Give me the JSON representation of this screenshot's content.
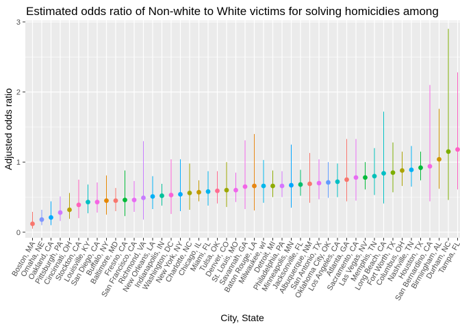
{
  "chart_data": {
    "type": "scatter",
    "title": "Estimated odds ratio of Non-white to White victims for solving homicidies among",
    "xlabel": "City, State",
    "ylabel": "Adjusted odds ratio",
    "ylim": [
      -0.08,
      3.02
    ],
    "yticks": [
      0,
      1,
      2,
      3
    ],
    "grid": true,
    "legend": "none",
    "error_bars": true,
    "points": [
      {
        "city": "Boston, MA",
        "or": 0.12,
        "low": 0.05,
        "high": 0.29,
        "color": "#F8766D"
      },
      {
        "city": "Omaha, NE",
        "or": 0.18,
        "low": 0.1,
        "high": 0.32,
        "color": "#7F96FF"
      },
      {
        "city": "Oakland, CA",
        "or": 0.21,
        "low": 0.1,
        "high": 0.44,
        "color": "#00A9FF"
      },
      {
        "city": "Pittsburgh, PA",
        "or": 0.28,
        "low": 0.16,
        "high": 0.51,
        "color": "#CF78FF"
      },
      {
        "city": "Cincinnati, OH",
        "or": 0.32,
        "low": 0.19,
        "high": 0.56,
        "color": "#B79F00"
      },
      {
        "city": "Stockton, CA",
        "or": 0.39,
        "low": 0.2,
        "high": 0.75,
        "color": "#FF62BC"
      },
      {
        "city": "Louisville, KY",
        "or": 0.43,
        "low": 0.27,
        "high": 0.68,
        "color": "#00BFC4"
      },
      {
        "city": "San Diego, CA",
        "or": 0.43,
        "low": 0.28,
        "high": 0.71,
        "color": "#F564E3"
      },
      {
        "city": "Buffalo, NY",
        "or": 0.45,
        "low": 0.25,
        "high": 0.81,
        "color": "#E58700"
      },
      {
        "city": "Baltimore, MD",
        "or": 0.45,
        "low": 0.3,
        "high": 0.63,
        "color": "#F8766D"
      },
      {
        "city": "Fresno, CA",
        "or": 0.46,
        "low": 0.23,
        "high": 0.88,
        "color": "#00BA38"
      },
      {
        "city": "San Francisco, CA",
        "or": 0.46,
        "low": 0.29,
        "high": 0.73,
        "color": "#E76BF3"
      },
      {
        "city": "Richmond, VA",
        "or": 0.49,
        "low": 0.18,
        "high": 1.3,
        "color": "#C77CFF"
      },
      {
        "city": "New Orleans, LA",
        "or": 0.51,
        "low": 0.33,
        "high": 0.8,
        "color": "#00B0F6"
      },
      {
        "city": "Indianapolis, IN",
        "or": 0.52,
        "low": 0.38,
        "high": 0.69,
        "color": "#00C19A"
      },
      {
        "city": "Washington, DC",
        "or": 0.53,
        "low": 0.26,
        "high": 1.04,
        "color": "#FB61D7"
      },
      {
        "city": "New York, NY",
        "or": 0.54,
        "low": 0.3,
        "high": 1.04,
        "color": "#00ABFD"
      },
      {
        "city": "Charlotte, NC",
        "or": 0.56,
        "low": 0.32,
        "high": 0.98,
        "color": "#A3A500"
      },
      {
        "city": "Chicago, IL",
        "or": 0.57,
        "low": 0.44,
        "high": 0.74,
        "color": "#C49A00"
      },
      {
        "city": "Miami, FL",
        "or": 0.58,
        "low": 0.38,
        "high": 0.87,
        "color": "#00B4EF"
      },
      {
        "city": "Tulsa, OK",
        "or": 0.59,
        "low": 0.41,
        "high": 0.87,
        "color": "#FF6C91"
      },
      {
        "city": "Denver, CO",
        "or": 0.6,
        "low": 0.36,
        "high": 1.0,
        "color": "#9CA700"
      },
      {
        "city": "St. Louis, MO",
        "or": 0.6,
        "low": 0.43,
        "high": 0.85,
        "color": "#EF67EB"
      },
      {
        "city": "Savannah, GA",
        "or": 0.65,
        "low": 0.33,
        "high": 1.31,
        "color": "#F265E7"
      },
      {
        "city": "Baton Rouge, LA",
        "or": 0.66,
        "low": 0.31,
        "high": 1.4,
        "color": "#E68613"
      },
      {
        "city": "Milwaukee, wI",
        "or": 0.66,
        "low": 0.42,
        "high": 1.03,
        "color": "#00B6EB"
      },
      {
        "city": "Detroit, MI",
        "or": 0.66,
        "low": 0.5,
        "high": 0.88,
        "color": "#8EAB00"
      },
      {
        "city": "Philadelphia, PA",
        "or": 0.66,
        "low": 0.5,
        "high": 0.87,
        "color": "#D575FE"
      },
      {
        "city": "Minneapolis, MN",
        "or": 0.67,
        "low": 0.35,
        "high": 1.25,
        "color": "#00A5FF"
      },
      {
        "city": "Jacksonville, FL",
        "or": 0.68,
        "low": 0.52,
        "high": 0.89,
        "color": "#00BE6C"
      },
      {
        "city": "Albuquerque, NM",
        "or": 0.69,
        "low": 0.42,
        "high": 1.13,
        "color": "#F8766D"
      },
      {
        "city": "San Antonio, TX",
        "or": 0.7,
        "low": 0.47,
        "high": 1.04,
        "color": "#E76BF3"
      },
      {
        "city": "Oklahoma City, OK",
        "or": 0.71,
        "low": 0.49,
        "high": 1.0,
        "color": "#619CFF"
      },
      {
        "city": "Los Angeles, CA",
        "or": 0.72,
        "low": 0.5,
        "high": 0.98,
        "color": "#00BFC4"
      },
      {
        "city": "Atlanta, GA",
        "or": 0.75,
        "low": 0.44,
        "high": 1.33,
        "color": "#F8766D"
      },
      {
        "city": "Sacramento, CA",
        "or": 0.78,
        "low": 0.45,
        "high": 1.33,
        "color": "#E76BF3"
      },
      {
        "city": "Las Vegas, NV",
        "or": 0.78,
        "low": 0.61,
        "high": 1.0,
        "color": "#00BA38"
      },
      {
        "city": "Memphis, TN",
        "or": 0.8,
        "low": 0.53,
        "high": 1.2,
        "color": "#00C0B8"
      },
      {
        "city": "Long Beach, CA",
        "or": 0.84,
        "low": 0.41,
        "high": 1.72,
        "color": "#00BFC4"
      },
      {
        "city": "Fort Worth, TX",
        "or": 0.85,
        "low": 0.57,
        "high": 1.28,
        "color": "#7CAE00"
      },
      {
        "city": "Columbus, OH",
        "or": 0.88,
        "low": 0.66,
        "high": 1.15,
        "color": "#ABA300"
      },
      {
        "city": "Nashville, TN",
        "or": 0.89,
        "low": 0.65,
        "high": 1.23,
        "color": "#00B0F6"
      },
      {
        "city": "Houston, TX",
        "or": 0.92,
        "low": 0.74,
        "high": 1.15,
        "color": "#00BA38"
      },
      {
        "city": "San Bernardino, CA",
        "or": 0.94,
        "low": 0.44,
        "high": 2.1,
        "color": "#F564E3"
      },
      {
        "city": "Birmingham, AL",
        "or": 1.04,
        "low": 0.62,
        "high": 1.76,
        "color": "#CD9600"
      },
      {
        "city": "Durham, NC",
        "or": 1.15,
        "low": 0.46,
        "high": 2.9,
        "color": "#7CAE00"
      },
      {
        "city": "Tampa, FL",
        "or": 1.18,
        "low": 0.61,
        "high": 2.28,
        "color": "#FF61C3"
      }
    ]
  }
}
